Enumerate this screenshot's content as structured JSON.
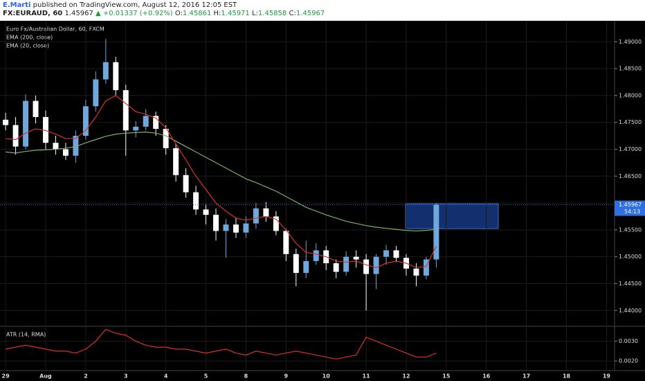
{
  "header": {
    "author": "E.Marti",
    "published": "published on TradingView.com, August 12, 2016 12:05 EST",
    "symbol": "FX:EURAUD, 60",
    "price": "1.45967",
    "change": "▲ +0.01337 (+0.92%)",
    "ohlc": [
      {
        "label": "O:",
        "value": "1.45861"
      },
      {
        "label": "H:",
        "value": "1.45971"
      },
      {
        "label": "L:",
        "value": "1.45858"
      },
      {
        "label": "C:",
        "value": "1.45967"
      }
    ]
  },
  "chart_data": [
    {
      "type": "candlestick",
      "legend": [
        "Euro Fx/Australian Dollar, 60, FXCM",
        "EMA (200, close)",
        "EMA (20, close)"
      ],
      "up_color": "#6fa8dc",
      "down_color": "#ffffff",
      "x": [
        0,
        0.25,
        0.5,
        0.75,
        1,
        1.25,
        1.5,
        1.75,
        2,
        2.25,
        2.5,
        2.75,
        3,
        3.25,
        3.5,
        3.75,
        4,
        4.25,
        4.5,
        4.75,
        5,
        5.25,
        5.5,
        5.75,
        6,
        6.25,
        6.5,
        6.75,
        7,
        7.25,
        7.5,
        7.75,
        8,
        8.25,
        8.5,
        8.75,
        9,
        9.25,
        9.5,
        9.75,
        10,
        10.25,
        10.5,
        10.75
      ],
      "open": [
        1.4755,
        1.4745,
        1.4705,
        1.479,
        1.476,
        1.4712,
        1.47,
        1.4688,
        1.4725,
        1.478,
        1.483,
        1.4862,
        1.481,
        1.4735,
        1.4742,
        1.4762,
        1.4738,
        1.4702,
        1.4652,
        1.462,
        1.4588,
        1.4578,
        1.4548,
        1.456,
        1.4545,
        1.4562,
        1.459,
        1.4575,
        1.4548,
        1.4505,
        1.447,
        1.4492,
        1.4512,
        1.4488,
        1.4472,
        1.45,
        1.4495,
        1.4468,
        1.45,
        1.4512,
        1.4498,
        1.4478,
        1.4465,
        1.4495
      ],
      "high": [
        1.4768,
        1.476,
        1.4802,
        1.48,
        1.4772,
        1.4725,
        1.4712,
        1.4735,
        1.4792,
        1.4845,
        1.4905,
        1.4872,
        1.482,
        1.4752,
        1.4775,
        1.477,
        1.4745,
        1.471,
        1.4665,
        1.4632,
        1.4598,
        1.459,
        1.457,
        1.4572,
        1.4575,
        1.46,
        1.4602,
        1.4585,
        1.4552,
        1.4515,
        1.453,
        1.4525,
        1.452,
        1.4495,
        1.451,
        1.4512,
        1.4505,
        1.4505,
        1.4522,
        1.452,
        1.4505,
        1.4488,
        1.45,
        1.46
      ],
      "low": [
        1.4735,
        1.469,
        1.47,
        1.4748,
        1.47,
        1.469,
        1.468,
        1.4675,
        1.4718,
        1.477,
        1.4822,
        1.48,
        1.4688,
        1.4722,
        1.4735,
        1.4725,
        1.469,
        1.464,
        1.461,
        1.4578,
        1.456,
        1.453,
        1.4498,
        1.4535,
        1.4535,
        1.4552,
        1.4565,
        1.454,
        1.4492,
        1.4445,
        1.446,
        1.4485,
        1.4475,
        1.446,
        1.4465,
        1.448,
        1.44,
        1.444,
        1.4485,
        1.449,
        1.4465,
        1.4445,
        1.4458,
        1.448
      ],
      "close": [
        1.4745,
        1.4705,
        1.479,
        1.476,
        1.4712,
        1.47,
        1.4688,
        1.4725,
        1.478,
        1.483,
        1.4862,
        1.481,
        1.4735,
        1.4742,
        1.4762,
        1.4738,
        1.4702,
        1.4652,
        1.462,
        1.4588,
        1.4578,
        1.4548,
        1.456,
        1.4545,
        1.4562,
        1.459,
        1.4575,
        1.4548,
        1.4505,
        1.447,
        1.4492,
        1.4512,
        1.4488,
        1.4472,
        1.45,
        1.4495,
        1.4468,
        1.45,
        1.4512,
        1.4498,
        1.4478,
        1.4465,
        1.4495,
        1.4597
      ],
      "series": [
        {
          "name": "EMA (200, close)",
          "color": "#7fb069",
          "values": [
            1.4695,
            1.4693,
            1.4696,
            1.4698,
            1.4699,
            1.47,
            1.4702,
            1.4705,
            1.4712,
            1.4718,
            1.4724,
            1.4728,
            1.473,
            1.4731,
            1.4732,
            1.473,
            1.4725,
            1.4715,
            1.4705,
            1.4695,
            1.4685,
            1.4675,
            1.4665,
            1.4655,
            1.4645,
            1.4638,
            1.463,
            1.4622,
            1.4612,
            1.4602,
            1.4592,
            1.4585,
            1.4578,
            1.4572,
            1.4566,
            1.4562,
            1.4558,
            1.4555,
            1.4553,
            1.4551,
            1.4549,
            1.4548,
            1.4549,
            1.4551
          ]
        },
        {
          "name": "EMA (20, close)",
          "color": "#d9302c",
          "values": [
            1.472,
            1.4718,
            1.473,
            1.4738,
            1.4735,
            1.4728,
            1.472,
            1.472,
            1.4735,
            1.476,
            1.479,
            1.48,
            1.4785,
            1.477,
            1.4765,
            1.4758,
            1.474,
            1.471,
            1.468,
            1.465,
            1.4625,
            1.46,
            1.4585,
            1.4572,
            1.4568,
            1.4572,
            1.4575,
            1.457,
            1.455,
            1.4525,
            1.4508,
            1.4505,
            1.45,
            1.4492,
            1.449,
            1.4492,
            1.4485,
            1.448,
            1.4488,
            1.4492,
            1.4488,
            1.448,
            1.4482,
            1.452
          ]
        }
      ],
      "last_price": 1.45967,
      "countdown": "54:13",
      "xlim": [
        -0.14,
        15.2
      ],
      "xticks": [
        {
          "value": 0,
          "label": "29"
        },
        {
          "value": 1,
          "label": "Aug"
        },
        2,
        3,
        4,
        5,
        {
          "value": 6,
          "label": "8"
        },
        {
          "value": 7,
          "label": "9"
        },
        {
          "value": 8,
          "label": "10"
        },
        {
          "value": 9,
          "label": "11"
        },
        {
          "value": 10,
          "label": "12"
        },
        {
          "value": 11,
          "label": "15"
        },
        {
          "value": 12,
          "label": "16"
        },
        {
          "value": 13,
          "label": "17"
        },
        {
          "value": 14,
          "label": "18"
        },
        {
          "value": 15,
          "label": "19"
        }
      ],
      "ylim": [
        1.4372,
        1.4939
      ],
      "yticks": [
        {
          "value": 1.44,
          "label": "1.44000"
        },
        {
          "value": 1.445,
          "label": "1.44500"
        },
        {
          "value": 1.45,
          "label": "1.45000"
        },
        {
          "value": 1.455,
          "label": "1.45500"
        },
        {
          "value": 1.46,
          "label": "1.46000"
        },
        {
          "value": 1.465,
          "label": "1.46500"
        },
        {
          "value": 1.47,
          "label": "1.47000"
        },
        {
          "value": 1.475,
          "label": "1.47500"
        },
        {
          "value": 1.48,
          "label": "1.48000"
        },
        {
          "value": 1.485,
          "label": "1.48500"
        },
        {
          "value": 1.49,
          "label": "1.49000"
        }
      ],
      "grid": true
    },
    {
      "type": "line",
      "title": "ATR (14, RMA)",
      "series": [
        {
          "name": "ATR (14, RMA)",
          "color": "#d9302c",
          "values": [
            0.0026,
            0.0027,
            0.0028,
            0.0027,
            0.0026,
            0.0025,
            0.0025,
            0.0024,
            0.0026,
            0.003,
            0.0036,
            0.0034,
            0.0033,
            0.003,
            0.0028,
            0.0027,
            0.0027,
            0.0026,
            0.0026,
            0.0025,
            0.0024,
            0.0025,
            0.0026,
            0.0024,
            0.0023,
            0.0025,
            0.0024,
            0.0023,
            0.0024,
            0.0025,
            0.0024,
            0.0023,
            0.0022,
            0.0021,
            0.0022,
            0.0023,
            0.0032,
            0.003,
            0.0028,
            0.0026,
            0.0024,
            0.0022,
            0.0022,
            0.0024
          ]
        }
      ],
      "ylim": [
        0.00155,
        0.00372
      ],
      "yticks": [
        {
          "value": 0.002,
          "label": "0.0020"
        },
        {
          "value": 0.003,
          "label": "0.0030"
        }
      ]
    }
  ]
}
